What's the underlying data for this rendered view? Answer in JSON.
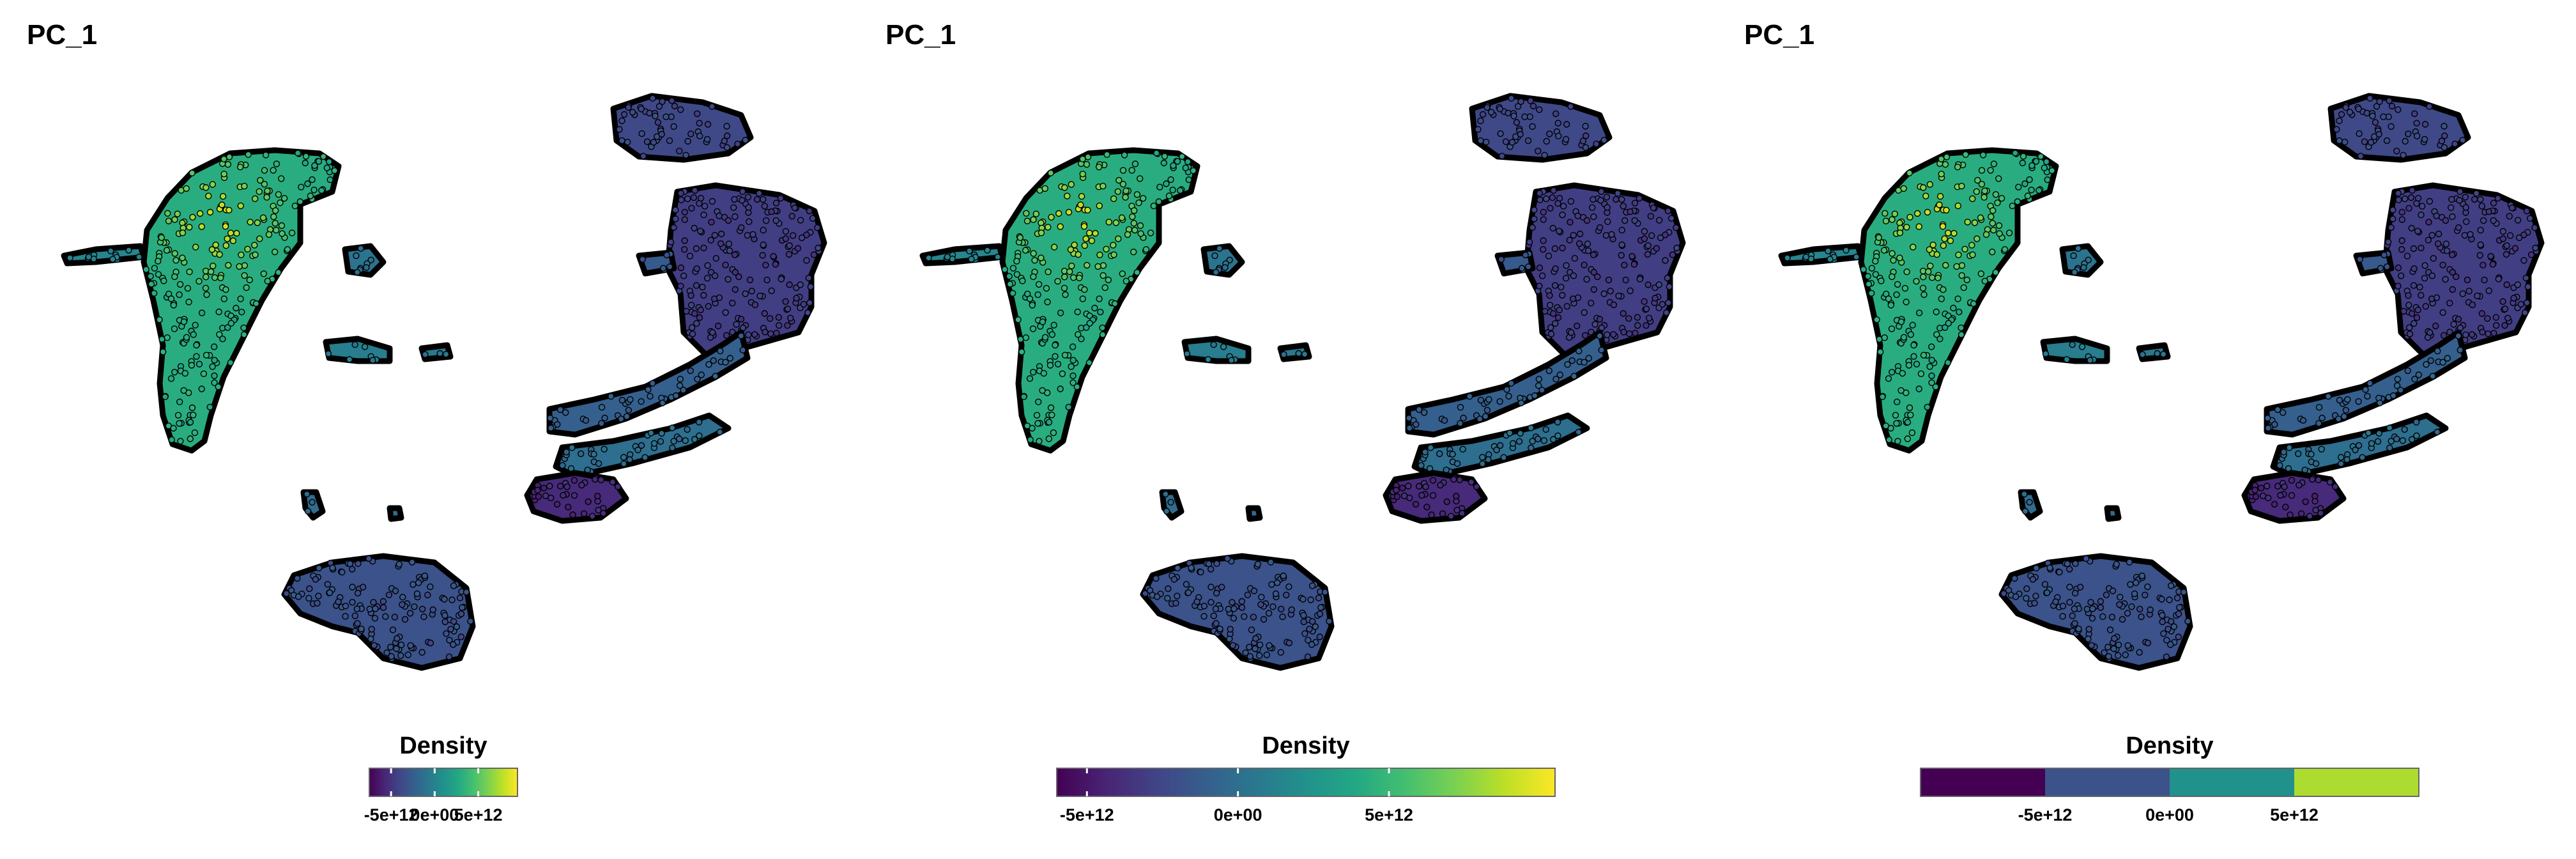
{
  "chart_data": [
    {
      "type": "scatter",
      "title": "PC_1",
      "legend": {
        "title": "Density",
        "style": "gradient",
        "colormap": "viridis",
        "range": [
          -7500000000000.0,
          9500000000000.0
        ],
        "ticks": [
          {
            "value": -5000000000000.0,
            "label": "-5e+12"
          },
          {
            "value": 0,
            "label": "0e+00"
          },
          {
            "value": 5000000000000.0,
            "label": "5e+12"
          }
        ],
        "placement": "bottom"
      },
      "point_outline": "#000000",
      "grid": false
    },
    {
      "type": "scatter",
      "title": "PC_1",
      "legend": {
        "title": "Density",
        "style": "gradient",
        "colormap": "viridis",
        "range": [
          -6000000000000.0,
          10500000000000.0
        ],
        "ticks": [
          {
            "value": -5000000000000.0,
            "label": "-5e+12"
          },
          {
            "value": 0,
            "label": "0e+00"
          },
          {
            "value": 5000000000000.0,
            "label": "5e+12"
          }
        ],
        "placement": "bottom"
      },
      "point_outline": "#000000",
      "grid": false
    },
    {
      "type": "scatter",
      "title": "PC_1",
      "legend": {
        "title": "Density",
        "style": "binned",
        "colormap": "viridis",
        "range": [
          -10000000000000.0,
          10000000000000.0
        ],
        "bins": [
          "#440154",
          "#3b528b",
          "#21918c",
          "#addc30"
        ],
        "ticks": [
          {
            "value": -5000000000000.0,
            "label": "-5e+12"
          },
          {
            "value": 0,
            "label": "0e+00"
          },
          {
            "value": 5000000000000.0,
            "label": "5e+12"
          }
        ],
        "placement": "bottom"
      },
      "point_outline": "#000000",
      "grid": false
    }
  ]
}
